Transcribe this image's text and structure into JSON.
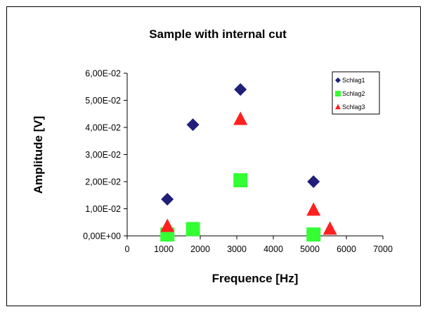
{
  "chart_data": {
    "type": "scatter",
    "title": "Sample with internal cut",
    "xlabel": "Frequence [Hz]",
    "ylabel": "Amplitude [V]",
    "xlim": [
      0,
      7000
    ],
    "ylim": [
      0,
      0.06
    ],
    "x_ticks": [
      0,
      1000,
      2000,
      3000,
      4000,
      5000,
      6000,
      7000
    ],
    "x_tick_labels": [
      "0",
      "1000",
      "2000",
      "3000",
      "4000",
      "5000",
      "6000",
      "7000"
    ],
    "y_ticks": [
      0,
      0.01,
      0.02,
      0.03,
      0.04,
      0.05,
      0.06
    ],
    "y_tick_labels": [
      "0,00E+00",
      "1,00E-02",
      "2,00E-02",
      "3,00E-02",
      "4,00E-02",
      "5,00E-02",
      "6,00E-02"
    ],
    "grid": false,
    "legend_position": "top-right",
    "series": [
      {
        "name": "Schlag1",
        "marker": "diamond",
        "color": "#1F1F7A",
        "points": [
          {
            "x": 1100,
            "y": 0.0135
          },
          {
            "x": 1800,
            "y": 0.041
          },
          {
            "x": 3100,
            "y": 0.054
          },
          {
            "x": 5100,
            "y": 0.02
          }
        ]
      },
      {
        "name": "Schlag2",
        "marker": "square",
        "color": "#33FF33",
        "points": [
          {
            "x": 1100,
            "y": 0.0005
          },
          {
            "x": 1800,
            "y": 0.0025
          },
          {
            "x": 3100,
            "y": 0.0205
          },
          {
            "x": 5100,
            "y": 0.0005
          }
        ]
      },
      {
        "name": "Schlag3",
        "marker": "triangle",
        "color": "#FF2020",
        "points": [
          {
            "x": 1100,
            "y": 0.0035
          },
          {
            "x": 3100,
            "y": 0.043
          },
          {
            "x": 5100,
            "y": 0.0095
          },
          {
            "x": 5550,
            "y": 0.0025
          }
        ]
      }
    ]
  }
}
